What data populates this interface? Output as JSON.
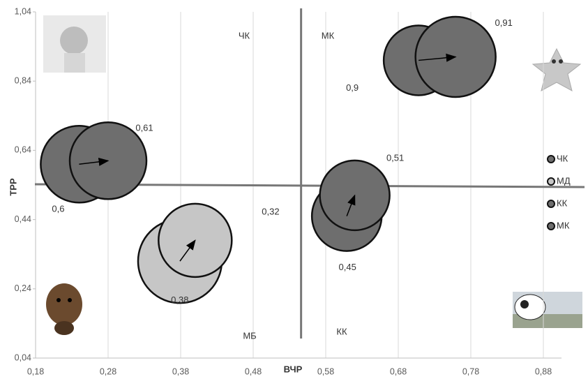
{
  "chart_data": {
    "type": "bubble",
    "x_label": "ВЧР",
    "y_label": "ТРР",
    "xlim": [
      0.18,
      0.905
    ],
    "ylim": [
      0.04,
      1.04
    ],
    "xticks": [
      {
        "value": 0.18,
        "label": "0,18"
      },
      {
        "value": 0.28,
        "label": "0,28"
      },
      {
        "value": 0.38,
        "label": "0,38"
      },
      {
        "value": 0.48,
        "label": "0,48"
      },
      {
        "value": 0.58,
        "label": "0,58"
      },
      {
        "value": 0.68,
        "label": "0,68"
      },
      {
        "value": 0.78,
        "label": "0,78"
      },
      {
        "value": 0.88,
        "label": "0,88"
      }
    ],
    "yticks": [
      {
        "value": 0.04,
        "label": "0,04"
      },
      {
        "value": 0.24,
        "label": "0,24"
      },
      {
        "value": 0.44,
        "label": "0,44"
      },
      {
        "value": 0.64,
        "label": "0,64"
      },
      {
        "value": 0.84,
        "label": "0,84"
      },
      {
        "value": 1.04,
        "label": "1,04"
      }
    ],
    "grid": true,
    "dividers": {
      "x": 0.546,
      "y": 0.54
    },
    "quadrants": [
      "ЧК",
      "МК",
      "МБ",
      "КК"
    ],
    "series": [
      {
        "name": "ЧК",
        "color": "#6e6e6e",
        "x": [
          0.24,
          0.28
        ],
        "values": [
          0.6,
          0.61
        ],
        "value_labels": [
          "0,6",
          "0,61"
        ],
        "sizes": [
          11,
          11
        ]
      },
      {
        "name": "МД",
        "color": "#c6c6c6",
        "x": [
          0.379,
          0.4
        ],
        "values": [
          0.32,
          0.38
        ],
        "value_labels": [
          "0,32",
          "0,38"
        ],
        "sizes": [
          12,
          10.5
        ]
      },
      {
        "name": "КК",
        "color": "#6e6e6e",
        "x": [
          0.609,
          0.62
        ],
        "values": [
          0.45,
          0.51
        ],
        "value_labels": [
          "0,45",
          "0,51"
        ],
        "sizes": [
          10,
          10
        ]
      },
      {
        "name": "МК",
        "color": "#6e6e6e",
        "x": [
          0.708,
          0.759
        ],
        "values": [
          0.9,
          0.91
        ],
        "value_labels": [
          "0,9",
          "0,91"
        ],
        "sizes": [
          10,
          11.5
        ]
      }
    ]
  }
}
